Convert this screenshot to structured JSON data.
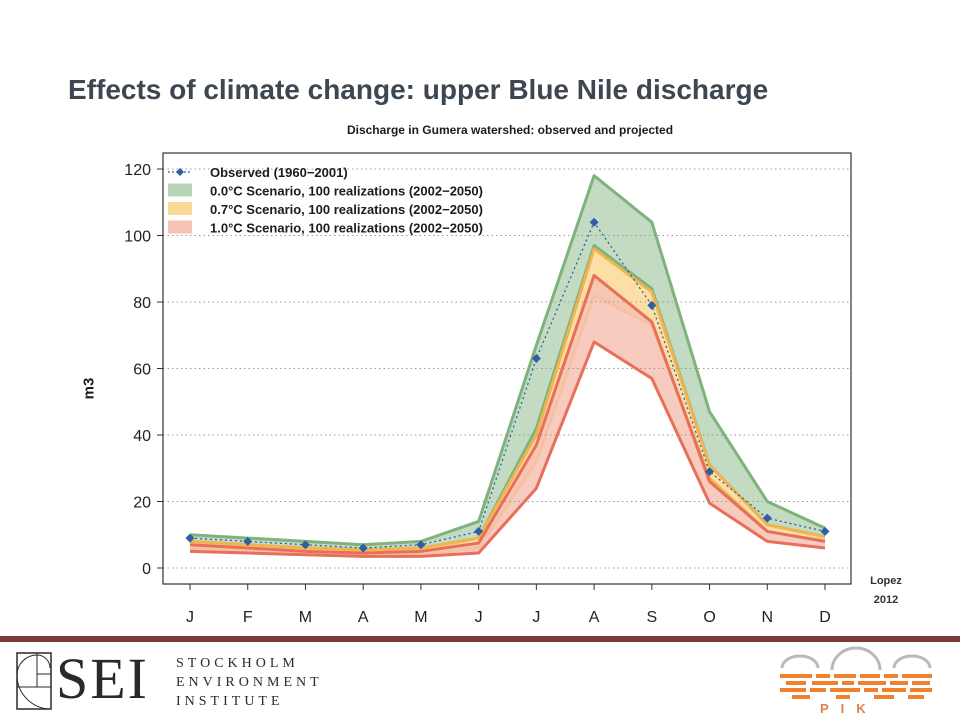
{
  "slide": {
    "title": "Effects of climate change: upper Blue Nile discharge",
    "citation_line1": "Lopez",
    "citation_line2": "2012"
  },
  "chart_data": {
    "type": "area",
    "title": "Discharge in Gumera watershed: observed and projected",
    "xlabel": "",
    "ylabel": "m3",
    "categories": [
      "J",
      "F",
      "M",
      "A",
      "M",
      "J",
      "J",
      "A",
      "S",
      "O",
      "N",
      "D"
    ],
    "ylim": [
      0,
      120
    ],
    "yticks": [
      0,
      20,
      40,
      60,
      80,
      100,
      120
    ],
    "grid": true,
    "legend_position": "top-left",
    "series": [
      {
        "name": "Observed (1960−2001)",
        "kind": "line-markers",
        "color": "#2e5fa3",
        "values": [
          9,
          8,
          7,
          6,
          7,
          11,
          63,
          104,
          79,
          29,
          15,
          11
        ]
      },
      {
        "name": "0.0°C Scenario, 100 realizations (2002−2050)",
        "kind": "band",
        "fill": "#b9d5b7",
        "edge": "#7fb27d",
        "lower": [
          7,
          6,
          5,
          4.5,
          5,
          9,
          42,
          97,
          84,
          31,
          13,
          9
        ],
        "upper": [
          10,
          9,
          8,
          7,
          8,
          14,
          67,
          118,
          104,
          47,
          20,
          12
        ]
      },
      {
        "name": "0.7°C Scenario, 100 realizations (2002−2050)",
        "kind": "band",
        "fill": "#fbd996",
        "edge": "#f0b34f",
        "lower": [
          6,
          5,
          4.5,
          4,
          4,
          6,
          32,
          82,
          73,
          27,
          11,
          8
        ],
        "upper": [
          8,
          7,
          6,
          5.5,
          6,
          9,
          40,
          96,
          83,
          31,
          13,
          9.5
        ]
      },
      {
        "name": "1.0°C Scenario, 100 realizations (2002−2050)",
        "kind": "band",
        "fill": "#f6c3b4",
        "edge": "#e8705a",
        "lower": [
          5,
          4.5,
          4,
          3.5,
          3.5,
          4.5,
          24,
          68,
          57,
          19.5,
          8,
          6
        ],
        "upper": [
          7,
          6,
          5,
          4.5,
          5,
          7.5,
          37,
          88,
          74,
          26,
          11,
          8
        ]
      }
    ]
  },
  "footer": {
    "sei_letters": "SEI",
    "sei_line1": "STOCKHOLM",
    "sei_line2": "ENVIRONMENT",
    "sei_line3": "INSTITUTE",
    "pik_label": "PIK",
    "rule_color": "#7b3b3b"
  }
}
